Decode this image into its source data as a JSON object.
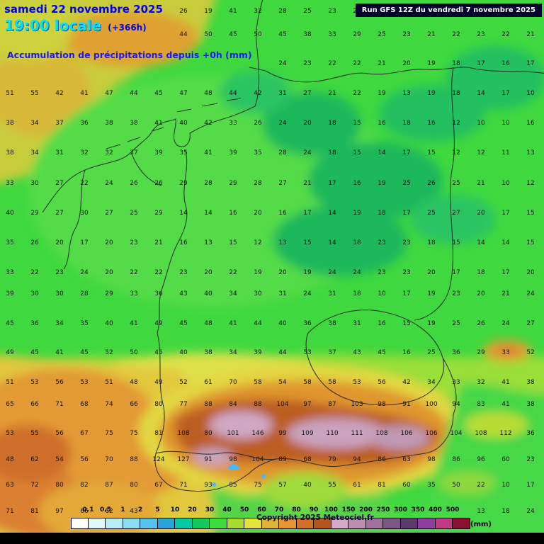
{
  "header": {
    "date": "samedi 22 novembre 2025",
    "time": "19:00 locale",
    "offset": "(+366h)",
    "subtitle": "Accumulation de précipitations depuis +0h (mm)",
    "run": "Run GFS 12Z du vendredi 7 novembre 2025"
  },
  "legend": {
    "values": [
      "0.1",
      "0.5",
      "1",
      "2",
      "5",
      "10",
      "20",
      "30",
      "40",
      "50",
      "60",
      "70",
      "80",
      "90",
      "100",
      "150",
      "200",
      "250",
      "300",
      "350",
      "400",
      "500"
    ],
    "unit": "(mm)",
    "colors": [
      "#ffffff",
      "#e2f8ff",
      "#b8ecfc",
      "#8cdcf8",
      "#58c2ee",
      "#2ba4de",
      "#00c8a8",
      "#16c85c",
      "#3fdc3f",
      "#a6dc32",
      "#e2e23c",
      "#e0b434",
      "#e89434",
      "#d4702a",
      "#b45520",
      "#d2aac6",
      "#bc8fb2",
      "#a0719c",
      "#7d5585",
      "#5b3a6e",
      "#8c3f9e",
      "#c23a86",
      "#8c1030"
    ]
  },
  "copyright": "Copyright 2025 Meteociel.fr",
  "map_colors": {
    "low_green": "#3fd83f",
    "dark_green": "#1db85c",
    "yellow_green": "#a6dc32",
    "yellow": "#e2e23c",
    "orange": "#e39a34",
    "dark_orange": "#cf6e2a",
    "brown": "#bc5d22",
    "mauve": "#c9a2bd",
    "border": "#1f1f1f"
  },
  "grid": {
    "rows": [
      [
        "",
        "",
        "",
        "",
        "",
        "",
        "",
        "26",
        "19",
        "41",
        "32",
        "28",
        "25",
        "23",
        "23",
        "24",
        "23",
        "22",
        "21",
        "22",
        "21",
        "22"
      ],
      [
        "",
        "",
        "",
        "",
        "",
        "",
        "",
        "44",
        "50",
        "45",
        "50",
        "45",
        "38",
        "33",
        "29",
        "25",
        "23",
        "21",
        "22",
        "23",
        "22",
        "21"
      ],
      [
        "",
        "",
        "",
        "",
        "",
        "",
        "",
        "",
        "",
        "",
        "",
        "24",
        "23",
        "22",
        "22",
        "21",
        "20",
        "19",
        "18",
        "17",
        "16",
        "17"
      ],
      [
        "51",
        "55",
        "42",
        "41",
        "47",
        "44",
        "45",
        "47",
        "48",
        "44",
        "42",
        "31",
        "27",
        "21",
        "22",
        "19",
        "13",
        "19",
        "18",
        "14",
        "17",
        "10"
      ],
      [
        "38",
        "34",
        "37",
        "36",
        "38",
        "38",
        "41",
        "40",
        "42",
        "33",
        "26",
        "24",
        "20",
        "18",
        "15",
        "16",
        "18",
        "16",
        "12",
        "10",
        "10",
        "16"
      ],
      [
        "38",
        "34",
        "31",
        "32",
        "32",
        "37",
        "39",
        "35",
        "41",
        "39",
        "35",
        "28",
        "24",
        "18",
        "15",
        "14",
        "17",
        "15",
        "12",
        "12",
        "11",
        "13"
      ],
      [
        "33",
        "30",
        "27",
        "22",
        "24",
        "26",
        "26",
        "29",
        "28",
        "29",
        "28",
        "27",
        "21",
        "17",
        "16",
        "19",
        "25",
        "26",
        "25",
        "21",
        "10",
        "12"
      ],
      [
        "40",
        "29",
        "27",
        "30",
        "27",
        "25",
        "29",
        "14",
        "14",
        "16",
        "20",
        "16",
        "17",
        "14",
        "19",
        "18",
        "17",
        "25",
        "27",
        "20",
        "17",
        "15"
      ],
      [
        "35",
        "26",
        "20",
        "17",
        "20",
        "23",
        "21",
        "16",
        "13",
        "15",
        "12",
        "13",
        "15",
        "14",
        "18",
        "23",
        "23",
        "18",
        "15",
        "14",
        "14",
        "15"
      ],
      [
        "33",
        "22",
        "23",
        "24",
        "20",
        "22",
        "22",
        "23",
        "20",
        "22",
        "19",
        "20",
        "19",
        "24",
        "24",
        "23",
        "23",
        "20",
        "17",
        "18",
        "17",
        "20"
      ],
      [
        "39",
        "30",
        "30",
        "28",
        "29",
        "33",
        "36",
        "43",
        "40",
        "34",
        "30",
        "31",
        "24",
        "31",
        "18",
        "10",
        "17",
        "19",
        "23",
        "20",
        "21",
        "24"
      ],
      [
        "45",
        "36",
        "34",
        "35",
        "40",
        "41",
        "49",
        "45",
        "48",
        "41",
        "44",
        "40",
        "36",
        "38",
        "31",
        "16",
        "15",
        "19",
        "25",
        "26",
        "24",
        "27"
      ],
      [
        "49",
        "45",
        "41",
        "45",
        "52",
        "50",
        "45",
        "40",
        "38",
        "34",
        "39",
        "44",
        "53",
        "37",
        "43",
        "45",
        "16",
        "25",
        "36",
        "29",
        "33",
        "52"
      ],
      [
        "51",
        "53",
        "56",
        "53",
        "51",
        "48",
        "49",
        "52",
        "61",
        "70",
        "58",
        "54",
        "58",
        "58",
        "53",
        "56",
        "42",
        "34",
        "33",
        "32",
        "41",
        "38"
      ],
      [
        "65",
        "66",
        "71",
        "68",
        "74",
        "66",
        "80",
        "77",
        "88",
        "84",
        "88",
        "104",
        "97",
        "87",
        "103",
        "98",
        "91",
        "100",
        "94",
        "83",
        "41",
        "38"
      ],
      [
        "53",
        "55",
        "56",
        "67",
        "75",
        "75",
        "81",
        "108",
        "80",
        "101",
        "146",
        "99",
        "109",
        "110",
        "111",
        "108",
        "106",
        "106",
        "104",
        "108",
        "112",
        "36"
      ],
      [
        "48",
        "62",
        "54",
        "56",
        "70",
        "88",
        "124",
        "127",
        "91",
        "98",
        "104",
        "89",
        "68",
        "79",
        "94",
        "86",
        "63",
        "98",
        "86",
        "96",
        "60",
        "23"
      ],
      [
        "63",
        "72",
        "80",
        "82",
        "87",
        "80",
        "67",
        "71",
        "93",
        "85",
        "75",
        "57",
        "40",
        "55",
        "61",
        "81",
        "60",
        "35",
        "50",
        "22",
        "10",
        "17"
      ],
      [
        "71",
        "81",
        "97",
        "66",
        "62",
        "43",
        "",
        "",
        "",
        "",
        "",
        "",
        "",
        "",
        "",
        "",
        "",
        "",
        "",
        "13",
        "18",
        "24"
      ]
    ]
  }
}
